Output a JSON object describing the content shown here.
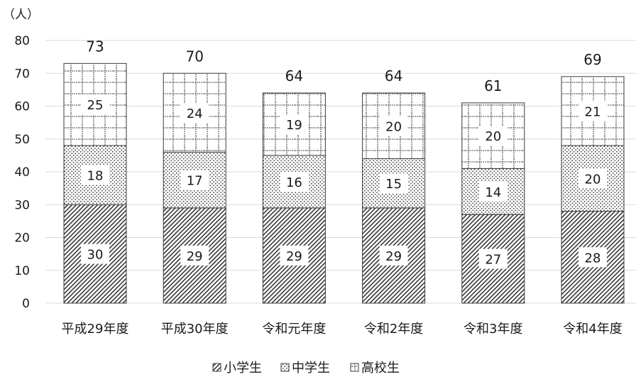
{
  "chart_data": {
    "type": "bar",
    "stacked": true,
    "unit_label": "（人）",
    "categories": [
      "平成29年度",
      "平成30年度",
      "令和元年度",
      "令和2年度",
      "令和3年度",
      "令和4年度"
    ],
    "series": [
      {
        "name": "小学生",
        "values": [
          30,
          29,
          29,
          29,
          27,
          28
        ],
        "pattern": "diagonal-hatch"
      },
      {
        "name": "中学生",
        "values": [
          18,
          17,
          16,
          15,
          14,
          20
        ],
        "pattern": "dots"
      },
      {
        "name": "高校生",
        "values": [
          25,
          24,
          19,
          20,
          20,
          21
        ],
        "pattern": "dotted-grid"
      }
    ],
    "totals": [
      73,
      70,
      64,
      64,
      61,
      69
    ],
    "ylim": [
      0,
      80
    ],
    "yticks": [
      0,
      10,
      20,
      30,
      40,
      50,
      60,
      70,
      80
    ],
    "grid": true,
    "legend_position": "bottom"
  },
  "colors": {
    "axis": "#d9d9d9",
    "grid": "#d9d9d9",
    "pattern": "#3a3a3a",
    "bar_border": "#3a3a3a"
  }
}
